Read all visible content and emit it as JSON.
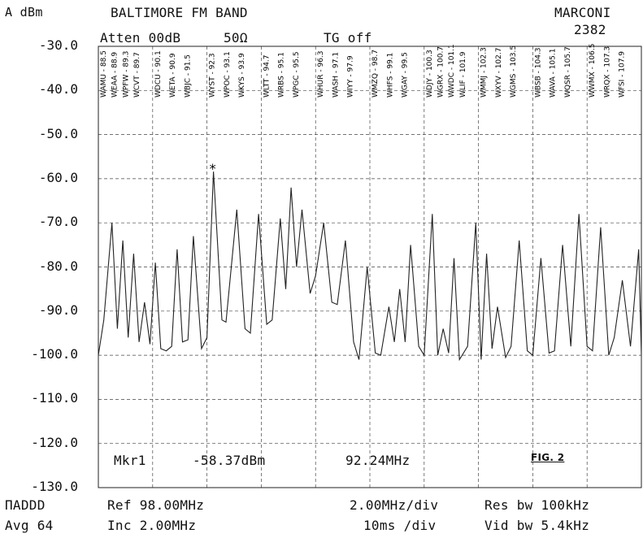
{
  "header": {
    "unit": "A dBm",
    "title": "BALTIMORE FM BAND",
    "brand": "MARCONI",
    "model": "2382",
    "atten": "Atten 00dB",
    "impedance": "50Ω",
    "tg": "TG off"
  },
  "marker": {
    "label": "Mkr1",
    "level": "-58.37dBm",
    "freq": "92.24MHz",
    "symbol": "*"
  },
  "figure_label": "FIG. 2",
  "footer": {
    "left_status": "ΠADDD",
    "avg": "Avg 64",
    "ref": "Ref  98.00MHz",
    "inc": "Inc    2.00MHz",
    "span": "2.00MHz/div",
    "sweep": "10ms /div",
    "rbw": "Res bw 100kHz",
    "vbw": "Vid bw 5.4kHz"
  },
  "station_groups": [
    [
      "WAMU - 88.5",
      "WEAA - 88.9",
      "WPFW - 89.3",
      "WCVT - 89.7"
    ],
    [
      "WDCU - 90.1",
      "WETA - 90.9",
      "WBJC - 91.5"
    ],
    [
      "WYST - 92.3",
      "WPOC - 93.1",
      "WKYS - 93.9"
    ],
    [
      "WLTT - 94.7",
      "WRBS - 95.1",
      "WPGC - 95.5"
    ],
    [
      "WHUR - 96.3",
      "WASH - 97.1",
      "WIYY - 97.9"
    ],
    [
      "WMZQ - 98.7",
      "WHFS - 99.1",
      "WGAY - 99.5"
    ],
    [
      "WDJY - 100.3",
      "WGRX - 100.7",
      "WWDC - 101.1",
      "WLIF - 101.9"
    ],
    [
      "WMMJ - 102.3",
      "WXYV - 102.7",
      "WGMS - 103.5"
    ],
    [
      "WBSB - 104.3",
      "WAVA - 105.1",
      "WQSR - 105.7"
    ],
    [
      "WWMX - 106.5",
      "WRQX - 107.3",
      "WFSI - 107.9"
    ]
  ],
  "chart_data": {
    "type": "line",
    "title": "BALTIMORE FM BAND",
    "xlabel": "",
    "ylabel": "A dBm",
    "ylim": [
      -130,
      -30
    ],
    "xlim": [
      88,
      108
    ],
    "y_ticks": [
      "-30.0",
      "-40.0",
      "-50.0",
      "-60.0",
      "-70.0",
      "-80.0",
      "-90.0",
      "-100.0",
      "-110.0",
      "-120.0",
      "-130.0"
    ],
    "grid": true,
    "series": [
      {
        "values": [
          [
            88.0,
            -100.0
          ],
          [
            88.2,
            -92.0
          ],
          [
            88.5,
            -70.0
          ],
          [
            88.7,
            -94.0
          ],
          [
            88.9,
            -74.0
          ],
          [
            89.1,
            -96.0
          ],
          [
            89.3,
            -77.0
          ],
          [
            89.5,
            -97.0
          ],
          [
            89.7,
            -88.0
          ],
          [
            89.9,
            -97.5
          ],
          [
            90.1,
            -79.0
          ],
          [
            90.3,
            -98.5
          ],
          [
            90.5,
            -99.0
          ],
          [
            90.7,
            -98.0
          ],
          [
            90.9,
            -76.0
          ],
          [
            91.1,
            -97.0
          ],
          [
            91.3,
            -96.5
          ],
          [
            91.5,
            -73.0
          ],
          [
            91.8,
            -98.5
          ],
          [
            92.0,
            -96.0
          ],
          [
            92.24,
            -58.4
          ],
          [
            92.55,
            -92.0
          ],
          [
            92.7,
            -92.5
          ],
          [
            93.1,
            -67.0
          ],
          [
            93.4,
            -94.0
          ],
          [
            93.6,
            -95.0
          ],
          [
            93.9,
            -68.0
          ],
          [
            94.2,
            -93.0
          ],
          [
            94.4,
            -92.0
          ],
          [
            94.7,
            -69.0
          ],
          [
            94.9,
            -85.0
          ],
          [
            95.1,
            -62.0
          ],
          [
            95.3,
            -80.0
          ],
          [
            95.5,
            -67.0
          ],
          [
            95.8,
            -86.0
          ],
          [
            96.0,
            -82.0
          ],
          [
            96.3,
            -70.0
          ],
          [
            96.6,
            -88.0
          ],
          [
            96.8,
            -88.5
          ],
          [
            97.1,
            -74.0
          ],
          [
            97.4,
            -97.0
          ],
          [
            97.6,
            -101.0
          ],
          [
            97.9,
            -80.0
          ],
          [
            98.2,
            -99.5
          ],
          [
            98.4,
            -100.0
          ],
          [
            98.7,
            -89.0
          ],
          [
            98.9,
            -97.0
          ],
          [
            99.1,
            -85.0
          ],
          [
            99.3,
            -97.0
          ],
          [
            99.5,
            -75.0
          ],
          [
            99.8,
            -98.0
          ],
          [
            100.0,
            -100.0
          ],
          [
            100.3,
            -68.0
          ],
          [
            100.5,
            -100.0
          ],
          [
            100.7,
            -94.0
          ],
          [
            100.9,
            -99.5
          ],
          [
            101.1,
            -78.0
          ],
          [
            101.3,
            -101.0
          ],
          [
            101.6,
            -98.0
          ],
          [
            101.9,
            -70.0
          ],
          [
            102.1,
            -101.0
          ],
          [
            102.3,
            -77.0
          ],
          [
            102.5,
            -98.5
          ],
          [
            102.7,
            -89.0
          ],
          [
            103.0,
            -100.5
          ],
          [
            103.2,
            -98.0
          ],
          [
            103.5,
            -74.0
          ],
          [
            103.8,
            -99.0
          ],
          [
            104.0,
            -100.0
          ],
          [
            104.3,
            -78.0
          ],
          [
            104.6,
            -99.5
          ],
          [
            104.8,
            -99.0
          ],
          [
            105.1,
            -75.0
          ],
          [
            105.4,
            -98.0
          ],
          [
            105.7,
            -68.0
          ],
          [
            106.0,
            -98.0
          ],
          [
            106.2,
            -99.0
          ],
          [
            106.5,
            -71.0
          ],
          [
            106.8,
            -100.0
          ],
          [
            107.0,
            -96.0
          ],
          [
            107.3,
            -83.0
          ],
          [
            107.6,
            -98.0
          ],
          [
            107.9,
            -76.0
          ],
          [
            108.0,
            -100.0
          ]
        ]
      }
    ]
  }
}
